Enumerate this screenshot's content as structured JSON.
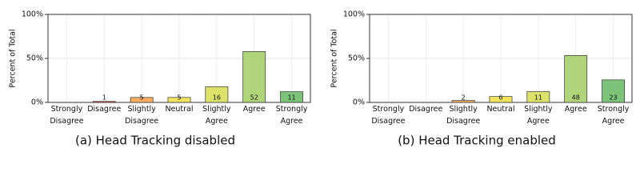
{
  "chart_data": [
    {
      "type": "bar",
      "caption": "(a) Head Tracking disabled",
      "ylabel": "Percent of Total",
      "categories": [
        [
          "Strongly",
          "Disagree"
        ],
        [
          "Disagree"
        ],
        [
          "Slightly",
          "Disagree"
        ],
        [
          "Neutral"
        ],
        [
          "Slightly",
          "Agree"
        ],
        [
          "Agree"
        ],
        [
          "Strongly",
          "Agree"
        ]
      ],
      "values": [
        0,
        1.1,
        5.6,
        5.6,
        17.8,
        57.8,
        12.2
      ],
      "counts": [
        null,
        "1",
        "5",
        "5",
        "16",
        "52",
        "11"
      ],
      "colors": [
        "#d7191c",
        "#e8413a",
        "#fdae61",
        "#f2e45f",
        "#dde36a",
        "#b0d47a",
        "#7dc47a"
      ],
      "ylim": [
        0,
        100
      ],
      "yticks": [
        {
          "value": 0,
          "label": "0%"
        },
        {
          "value": 50,
          "label": "50%"
        },
        {
          "value": 100,
          "label": "100%"
        }
      ],
      "grid": true
    },
    {
      "type": "bar",
      "caption": "(b) Head Tracking enabled",
      "ylabel": "Percent of Total",
      "categories": [
        [
          "Strongly",
          "Disagree"
        ],
        [
          "Disagree"
        ],
        [
          "Slightly",
          "Disagree"
        ],
        [
          "Neutral"
        ],
        [
          "Slightly",
          "Agree"
        ],
        [
          "Agree"
        ],
        [
          "Strongly",
          "Agree"
        ]
      ],
      "values": [
        0,
        0,
        2.2,
        6.7,
        12.2,
        53.3,
        25.6
      ],
      "counts": [
        null,
        null,
        "2",
        "6",
        "11",
        "48",
        "23"
      ],
      "colors": [
        "#d7191c",
        "#e8413a",
        "#fdae61",
        "#f2e45f",
        "#dde36a",
        "#b0d47a",
        "#7dc47a"
      ],
      "ylim": [
        0,
        100
      ],
      "yticks": [
        {
          "value": 0,
          "label": "0%"
        },
        {
          "value": 50,
          "label": "50%"
        },
        {
          "value": 100,
          "label": "100%"
        }
      ],
      "grid": true
    }
  ]
}
